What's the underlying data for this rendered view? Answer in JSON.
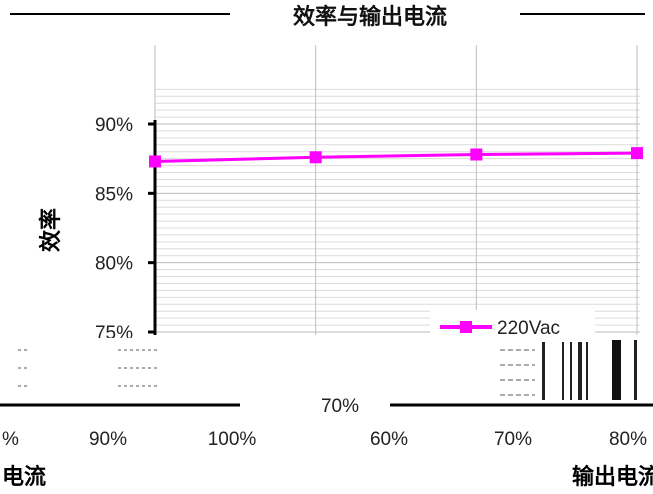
{
  "chart_data": {
    "type": "line",
    "title": "效率与输出电流",
    "ylabel": "效率",
    "xlabel": "输出电流",
    "ylim": [
      75,
      92
    ],
    "yticks": [
      "75%",
      "80%",
      "85%",
      "90%"
    ],
    "x_visible_ticks": [
      "60%",
      "70%",
      "80%"
    ],
    "series": [
      {
        "name": "220Vac",
        "color": "#ff00ff",
        "x": [
          50,
          60,
          70,
          80
        ],
        "values": [
          87.3,
          87.6,
          87.8,
          87.9
        ]
      }
    ],
    "grid": true,
    "legend": "bottom-right"
  },
  "overlay_ticks": [
    "%",
    "90%",
    "100%",
    "70%"
  ],
  "overlay_xlabel_fragment": "电流"
}
